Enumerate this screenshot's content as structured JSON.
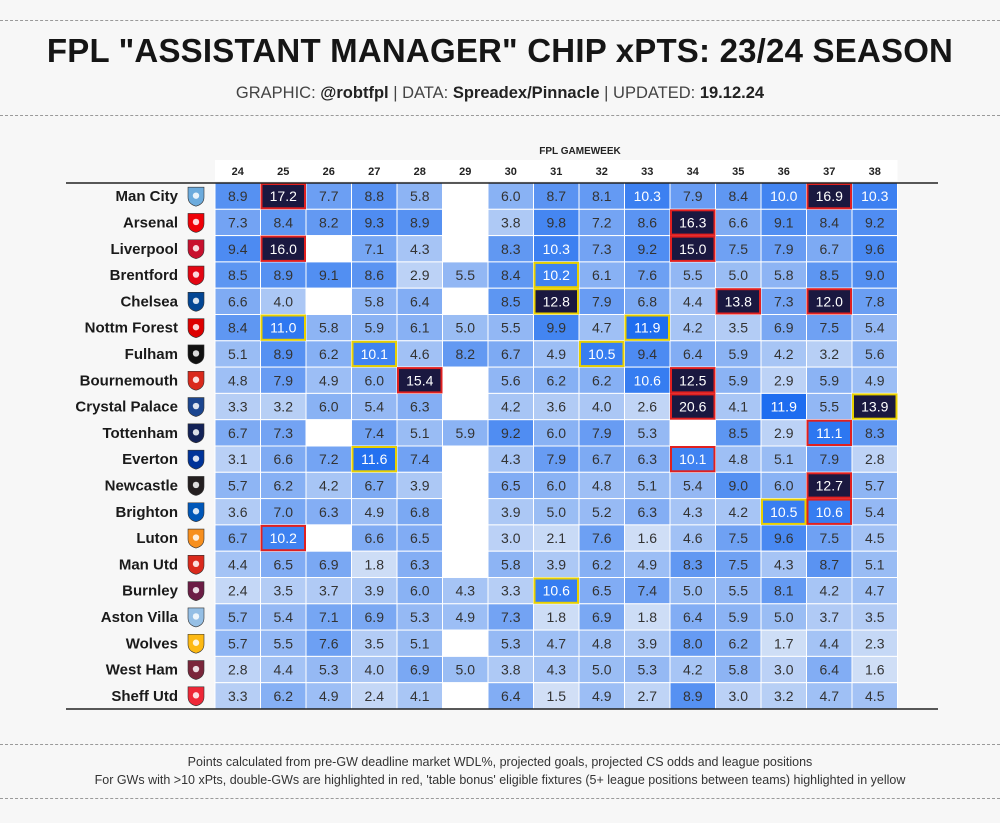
{
  "header": {
    "title": "FPL \"ASSISTANT MANAGER\" CHIP xPTS: 23/24 SEASON",
    "graphic_label": "GRAPHIC:",
    "graphic_value": "@robtfpl",
    "data_label": "DATA:",
    "data_value": "Spreadex/Pinnacle",
    "updated_label": "UPDATED:",
    "updated_value": "19.12.24"
  },
  "footnotes": {
    "line1": "Points calculated from pre-GW deadline market WDL%, projected goals, projected CS odds and league positions",
    "line2": "For GWs with >10 xPts, double-GWs are highlighted in red, 'table bonus' eligible fixtures (5+ league positions between teams) highlighted in yellow"
  },
  "colors": {
    "heat_low": "#e3ebf7",
    "heat_high": "#1c6cf0",
    "dark_cell": "#1a1840",
    "double_gw_border": "#e02020",
    "table_bonus_border": "#e8d000",
    "background": "#f7f7f7"
  },
  "chart_data": {
    "type": "heatmap",
    "xlabel": "FPL GAMEWEEK",
    "gameweeks": [
      "24",
      "25",
      "26",
      "27",
      "28",
      "29",
      "30",
      "31",
      "32",
      "33",
      "34",
      "35",
      "36",
      "37",
      "38"
    ],
    "teams": [
      {
        "name": "Man City",
        "badge": "man-city-badge-icon",
        "badge_color": "#6cabdd",
        "values": [
          8.9,
          17.2,
          7.7,
          8.8,
          5.8,
          null,
          6.0,
          8.7,
          8.1,
          10.3,
          7.9,
          8.4,
          10.0,
          16.9,
          10.3
        ],
        "highlights": {
          "1": "double",
          "13": "double"
        }
      },
      {
        "name": "Arsenal",
        "badge": "arsenal-badge-icon",
        "badge_color": "#ef0107",
        "values": [
          7.3,
          8.4,
          8.2,
          9.3,
          8.9,
          null,
          3.8,
          9.8,
          7.2,
          8.6,
          16.3,
          6.6,
          9.1,
          8.4,
          9.2
        ],
        "highlights": {
          "10": "double"
        }
      },
      {
        "name": "Liverpool",
        "badge": "liverpool-badge-icon",
        "badge_color": "#c8102e",
        "values": [
          9.4,
          16.0,
          null,
          7.1,
          4.3,
          null,
          8.3,
          10.3,
          7.3,
          9.2,
          15.0,
          7.5,
          7.9,
          6.7,
          9.6
        ],
        "highlights": {
          "1": "double",
          "10": "double"
        }
      },
      {
        "name": "Brentford",
        "badge": "brentford-badge-icon",
        "badge_color": "#e30613",
        "values": [
          8.5,
          8.9,
          9.1,
          8.6,
          2.9,
          5.5,
          8.4,
          10.2,
          6.1,
          7.6,
          5.5,
          5.0,
          5.8,
          8.5,
          9.0
        ],
        "highlights": {
          "7": "bonus"
        }
      },
      {
        "name": "Chelsea",
        "badge": "chelsea-badge-icon",
        "badge_color": "#034694",
        "values": [
          6.6,
          4.0,
          null,
          5.8,
          6.4,
          null,
          8.5,
          12.8,
          7.9,
          6.8,
          4.4,
          13.8,
          7.3,
          12.0,
          7.8
        ],
        "highlights": {
          "7": "bonus",
          "11": "double",
          "13": "double"
        }
      },
      {
        "name": "Nottm Forest",
        "badge": "nottm-forest-badge-icon",
        "badge_color": "#dd0000",
        "values": [
          8.4,
          11.0,
          5.8,
          5.9,
          6.1,
          5.0,
          5.5,
          9.9,
          4.7,
          11.9,
          4.2,
          3.5,
          6.9,
          7.5,
          5.4
        ],
        "highlights": {
          "1": "bonus",
          "9": "bonus"
        }
      },
      {
        "name": "Fulham",
        "badge": "fulham-badge-icon",
        "badge_color": "#111111",
        "values": [
          5.1,
          8.9,
          6.2,
          10.1,
          4.6,
          8.2,
          6.7,
          4.9,
          10.5,
          9.4,
          6.4,
          5.9,
          4.2,
          3.2,
          5.6
        ],
        "highlights": {
          "3": "bonus",
          "8": "bonus"
        }
      },
      {
        "name": "Bournemouth",
        "badge": "bournemouth-badge-icon",
        "badge_color": "#da291c",
        "values": [
          4.8,
          7.9,
          4.9,
          6.0,
          15.4,
          null,
          5.6,
          6.2,
          6.2,
          10.6,
          12.5,
          5.9,
          2.9,
          5.9,
          4.9
        ],
        "highlights": {
          "4": "double",
          "10": "double"
        }
      },
      {
        "name": "Crystal Palace",
        "badge": "crystal-palace-badge-icon",
        "badge_color": "#1b458f",
        "values": [
          3.3,
          3.2,
          6.0,
          5.4,
          6.3,
          null,
          4.2,
          3.6,
          4.0,
          2.6,
          20.6,
          4.1,
          11.9,
          5.5,
          13.9
        ],
        "highlights": {
          "10": "double",
          "14": "bonus"
        }
      },
      {
        "name": "Tottenham",
        "badge": "tottenham-badge-icon",
        "badge_color": "#132257",
        "values": [
          6.7,
          7.3,
          null,
          7.4,
          5.1,
          5.9,
          9.2,
          6.0,
          7.9,
          5.3,
          null,
          8.5,
          2.9,
          11.1,
          8.3
        ],
        "highlights": {
          "13": "double"
        }
      },
      {
        "name": "Everton",
        "badge": "everton-badge-icon",
        "badge_color": "#003399",
        "values": [
          3.1,
          6.6,
          7.2,
          11.6,
          7.4,
          null,
          4.3,
          7.9,
          6.7,
          6.3,
          10.1,
          4.8,
          5.1,
          7.9,
          2.8
        ],
        "highlights": {
          "3": "bonus",
          "10": "double"
        }
      },
      {
        "name": "Newcastle",
        "badge": "newcastle-badge-icon",
        "badge_color": "#241f20",
        "values": [
          5.7,
          6.2,
          4.2,
          6.7,
          3.9,
          null,
          6.5,
          6.0,
          4.8,
          5.1,
          5.4,
          9.0,
          6.0,
          12.7,
          5.7
        ],
        "highlights": {
          "13": "double"
        }
      },
      {
        "name": "Brighton",
        "badge": "brighton-badge-icon",
        "badge_color": "#0057b8",
        "values": [
          3.6,
          7.0,
          6.3,
          4.9,
          6.8,
          null,
          3.9,
          5.0,
          5.2,
          6.3,
          4.3,
          4.2,
          10.5,
          10.6,
          5.4
        ],
        "highlights": {
          "12": "bonus",
          "13": "double"
        }
      },
      {
        "name": "Luton",
        "badge": "luton-badge-icon",
        "badge_color": "#f78f1e",
        "values": [
          6.7,
          10.2,
          null,
          6.6,
          6.5,
          null,
          3.0,
          2.1,
          7.6,
          1.6,
          4.6,
          7.5,
          9.6,
          7.5,
          4.5
        ],
        "highlights": {
          "1": "double"
        }
      },
      {
        "name": "Man Utd",
        "badge": "man-utd-badge-icon",
        "badge_color": "#da291c",
        "values": [
          4.4,
          6.5,
          6.9,
          1.8,
          6.3,
          null,
          5.8,
          3.9,
          6.2,
          4.9,
          8.3,
          7.5,
          4.3,
          8.7,
          5.1
        ],
        "highlights": {}
      },
      {
        "name": "Burnley",
        "badge": "burnley-badge-icon",
        "badge_color": "#6c1d45",
        "values": [
          2.4,
          3.5,
          3.7,
          3.9,
          6.0,
          4.3,
          3.3,
          10.6,
          6.5,
          7.4,
          5.0,
          5.5,
          8.1,
          4.2,
          4.7
        ],
        "highlights": {
          "7": "bonus"
        }
      },
      {
        "name": "Aston Villa",
        "badge": "aston-villa-badge-icon",
        "badge_color": "#95bfe5",
        "values": [
          5.7,
          5.4,
          7.1,
          6.9,
          5.3,
          4.9,
          7.3,
          1.8,
          6.9,
          1.8,
          6.4,
          5.9,
          5.0,
          3.7,
          3.5
        ],
        "highlights": {}
      },
      {
        "name": "Wolves",
        "badge": "wolves-badge-icon",
        "badge_color": "#fdb913",
        "values": [
          5.7,
          5.5,
          7.6,
          3.5,
          5.1,
          null,
          5.3,
          4.7,
          4.8,
          3.9,
          8.0,
          6.2,
          1.7,
          4.4,
          2.3
        ],
        "highlights": {}
      },
      {
        "name": "West Ham",
        "badge": "west-ham-badge-icon",
        "badge_color": "#7a263a",
        "values": [
          2.8,
          4.4,
          5.3,
          4.0,
          6.9,
          5.0,
          3.8,
          4.3,
          5.0,
          5.3,
          4.2,
          5.8,
          3.0,
          6.4,
          1.6
        ],
        "highlights": {}
      },
      {
        "name": "Sheff Utd",
        "badge": "sheff-utd-badge-icon",
        "badge_color": "#ee2737",
        "values": [
          3.3,
          6.2,
          4.9,
          2.4,
          4.1,
          null,
          6.4,
          1.5,
          4.9,
          2.7,
          8.9,
          3.0,
          3.2,
          4.7,
          4.5
        ],
        "highlights": {}
      }
    ],
    "dark_threshold": 12,
    "value_range": [
      0,
      12
    ]
  }
}
